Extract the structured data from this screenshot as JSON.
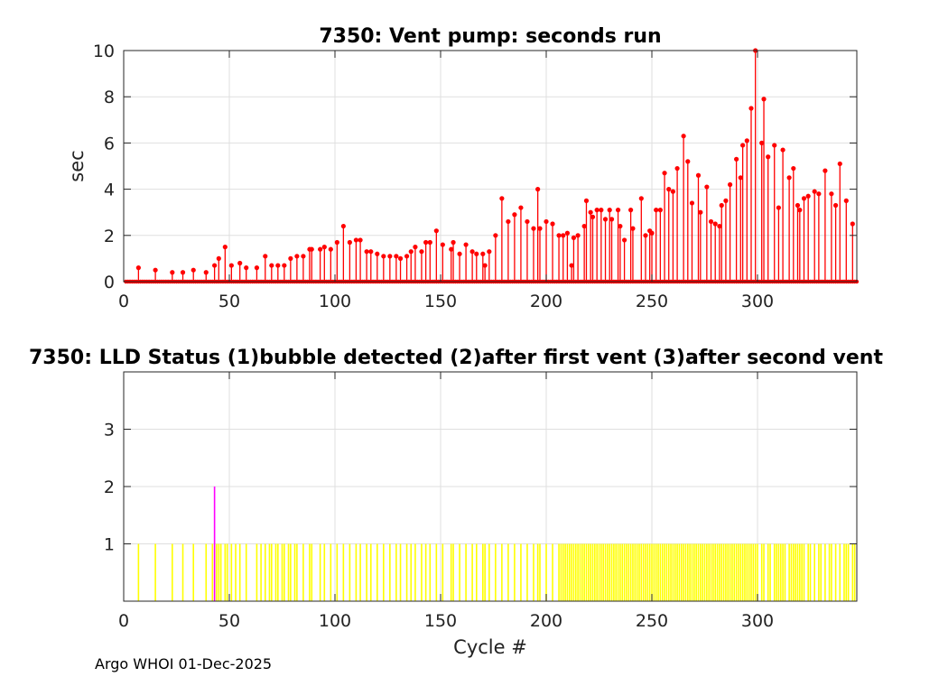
{
  "footer": "Argo WHOI 01-Dec-2025",
  "chart_data": [
    {
      "type": "stem",
      "title": "7350: Vent pump: seconds run",
      "xlabel": "",
      "ylabel": "sec",
      "xlim": [
        0,
        347
      ],
      "ylim": [
        0,
        10
      ],
      "xticks": [
        0,
        50,
        100,
        150,
        200,
        250,
        300
      ],
      "yticks": [
        0,
        2,
        4,
        6,
        8,
        10
      ],
      "grid": true,
      "color": "#ff0000",
      "points": [
        [
          7,
          0.6
        ],
        [
          15,
          0.5
        ],
        [
          23,
          0.4
        ],
        [
          28,
          0.4
        ],
        [
          33,
          0.5
        ],
        [
          39,
          0.4
        ],
        [
          43,
          0.7
        ],
        [
          45,
          1.0
        ],
        [
          48,
          1.5
        ],
        [
          51,
          0.7
        ],
        [
          55,
          0.8
        ],
        [
          58,
          0.6
        ],
        [
          63,
          0.6
        ],
        [
          67,
          1.1
        ],
        [
          70,
          0.7
        ],
        [
          73,
          0.7
        ],
        [
          76,
          0.7
        ],
        [
          79,
          1.0
        ],
        [
          82,
          1.1
        ],
        [
          85,
          1.1
        ],
        [
          88,
          1.4
        ],
        [
          89,
          1.4
        ],
        [
          93,
          1.4
        ],
        [
          95,
          1.5
        ],
        [
          98,
          1.4
        ],
        [
          101,
          1.7
        ],
        [
          104,
          2.4
        ],
        [
          107,
          1.7
        ],
        [
          110,
          1.8
        ],
        [
          112,
          1.8
        ],
        [
          115,
          1.3
        ],
        [
          117,
          1.3
        ],
        [
          120,
          1.2
        ],
        [
          123,
          1.1
        ],
        [
          126,
          1.1
        ],
        [
          129,
          1.1
        ],
        [
          131,
          1.0
        ],
        [
          134,
          1.1
        ],
        [
          136,
          1.3
        ],
        [
          138,
          1.5
        ],
        [
          141,
          1.3
        ],
        [
          143,
          1.7
        ],
        [
          145,
          1.7
        ],
        [
          148,
          2.2
        ],
        [
          151,
          1.6
        ],
        [
          155,
          1.4
        ],
        [
          156,
          1.7
        ],
        [
          159,
          1.2
        ],
        [
          162,
          1.6
        ],
        [
          165,
          1.3
        ],
        [
          167,
          1.2
        ],
        [
          170,
          1.2
        ],
        [
          171,
          0.7
        ],
        [
          173,
          1.3
        ],
        [
          176,
          2.0
        ],
        [
          179,
          3.6
        ],
        [
          182,
          2.6
        ],
        [
          185,
          2.9
        ],
        [
          188,
          3.2
        ],
        [
          191,
          2.6
        ],
        [
          194,
          2.3
        ],
        [
          196,
          4.0
        ],
        [
          197,
          2.3
        ],
        [
          200,
          2.6
        ],
        [
          203,
          2.5
        ],
        [
          206,
          2.0
        ],
        [
          208,
          2.0
        ],
        [
          210,
          2.1
        ],
        [
          212,
          0.7
        ],
        [
          213,
          1.9
        ],
        [
          215,
          2.0
        ],
        [
          218,
          2.4
        ],
        [
          219,
          3.5
        ],
        [
          221,
          3.0
        ],
        [
          222,
          2.8
        ],
        [
          224,
          3.1
        ],
        [
          226,
          3.1
        ],
        [
          228,
          2.7
        ],
        [
          230,
          3.1
        ],
        [
          231,
          2.7
        ],
        [
          234,
          3.1
        ],
        [
          235,
          2.4
        ],
        [
          237,
          1.8
        ],
        [
          240,
          3.1
        ],
        [
          241,
          2.3
        ],
        [
          245,
          3.6
        ],
        [
          247,
          2.0
        ],
        [
          249,
          2.2
        ],
        [
          250,
          2.1
        ],
        [
          252,
          3.1
        ],
        [
          254,
          3.1
        ],
        [
          256,
          4.7
        ],
        [
          258,
          4.0
        ],
        [
          260,
          3.9
        ],
        [
          262,
          4.9
        ],
        [
          265,
          6.3
        ],
        [
          267,
          5.2
        ],
        [
          269,
          3.4
        ],
        [
          272,
          4.6
        ],
        [
          273,
          3.0
        ],
        [
          276,
          4.1
        ],
        [
          278,
          2.6
        ],
        [
          280,
          2.5
        ],
        [
          282,
          2.4
        ],
        [
          283,
          3.3
        ],
        [
          285,
          3.5
        ],
        [
          287,
          4.2
        ],
        [
          290,
          5.3
        ],
        [
          292,
          4.5
        ],
        [
          293,
          5.9
        ],
        [
          295,
          6.1
        ],
        [
          297,
          7.5
        ],
        [
          299,
          10.0
        ],
        [
          302,
          6.0
        ],
        [
          303,
          7.9
        ],
        [
          305,
          5.4
        ],
        [
          308,
          5.9
        ],
        [
          310,
          3.2
        ],
        [
          312,
          5.7
        ],
        [
          315,
          4.5
        ],
        [
          317,
          4.9
        ],
        [
          319,
          3.3
        ],
        [
          320,
          3.1
        ],
        [
          322,
          3.6
        ],
        [
          324,
          3.7
        ],
        [
          327,
          3.9
        ],
        [
          329,
          3.8
        ],
        [
          332,
          4.8
        ],
        [
          335,
          3.8
        ],
        [
          337,
          3.3
        ],
        [
          339,
          5.1
        ],
        [
          342,
          3.5
        ],
        [
          345,
          2.5
        ]
      ]
    },
    {
      "type": "stem",
      "title": "7350: LLD Status   (1)bubble detected   (2)after first vent  (3)after second vent",
      "xlabel": "Cycle #",
      "ylabel": "",
      "xlim": [
        0,
        347
      ],
      "ylim": [
        0,
        4
      ],
      "xticks": [
        0,
        50,
        100,
        150,
        200,
        250,
        300
      ],
      "yticks": [
        1,
        2,
        3
      ],
      "grid": true,
      "series": [
        {
          "color": "#ffff00",
          "value": 1,
          "x": [
            7,
            15,
            23,
            28,
            33,
            39,
            42,
            44,
            45,
            46,
            48,
            49,
            51,
            53,
            55,
            58,
            63,
            65,
            67,
            69,
            70,
            72,
            73,
            75,
            76,
            78,
            79,
            81,
            82,
            85,
            88,
            89,
            93,
            95,
            98,
            101,
            104,
            107,
            110,
            112,
            115,
            117,
            120,
            123,
            126,
            129,
            131,
            134,
            136,
            138,
            141,
            143,
            145,
            148,
            151,
            155,
            156,
            159,
            162,
            165,
            167,
            170,
            171,
            173,
            176,
            179,
            182,
            185,
            188,
            191,
            194,
            196,
            197,
            200,
            203,
            206,
            207,
            208,
            209,
            210,
            211,
            212,
            213,
            214,
            215,
            216,
            217,
            218,
            219,
            220,
            221,
            222,
            223,
            224,
            225,
            226,
            227,
            228,
            229,
            230,
            231,
            232,
            233,
            234,
            235,
            236,
            237,
            238,
            239,
            240,
            241,
            242,
            243,
            244,
            245,
            246,
            247,
            248,
            249,
            250,
            251,
            252,
            253,
            254,
            255,
            256,
            257,
            258,
            259,
            260,
            261,
            262,
            263,
            264,
            265,
            266,
            267,
            268,
            269,
            270,
            271,
            272,
            273,
            274,
            275,
            276,
            277,
            278,
            279,
            280,
            281,
            282,
            283,
            284,
            285,
            286,
            287,
            288,
            289,
            290,
            291,
            292,
            293,
            294,
            295,
            296,
            297,
            298,
            299,
            300,
            302,
            303,
            305,
            306,
            308,
            309,
            310,
            311,
            312,
            313,
            315,
            316,
            317,
            318,
            319,
            320,
            321,
            322,
            324,
            325,
            327,
            329,
            330,
            332,
            334,
            335,
            337,
            339,
            341,
            342,
            343,
            345,
            346
          ]
        },
        {
          "color": "#ff00ff",
          "value": 2,
          "x": [
            43
          ]
        }
      ]
    }
  ]
}
